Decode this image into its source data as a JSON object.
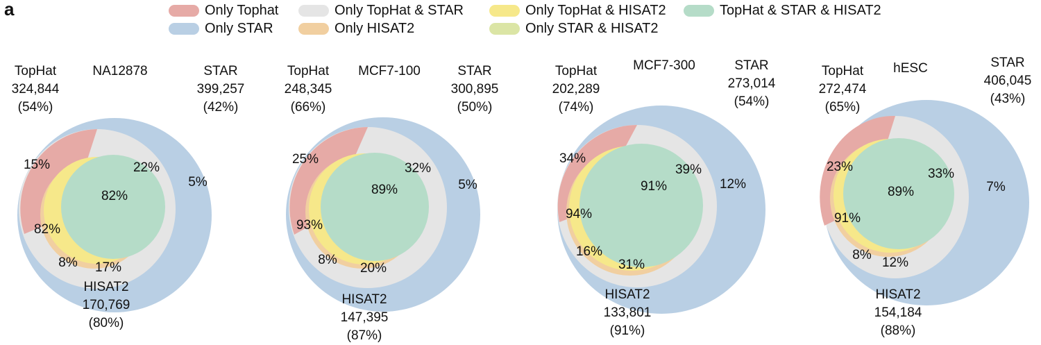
{
  "panel_letter": "a",
  "legend": [
    {
      "label": "Only Tophat",
      "color": "#e6aaa6"
    },
    {
      "label": "Only STAR",
      "color": "#b9cfe4"
    },
    {
      "label": "Only TopHat & STAR",
      "color": "#e5e5e5"
    },
    {
      "label": "Only HISAT2",
      "color": "#f1cfa0"
    },
    {
      "label": "Only TopHat & HISAT2",
      "color": "#f6e88a"
    },
    {
      "label": "Only STAR & HISAT2",
      "color": "#dbe5a5"
    },
    {
      "label": "TopHat & STAR & HISAT2",
      "color": "#b5dcc8"
    }
  ],
  "venns": [
    {
      "title": "NA12878",
      "tophat": {
        "name": "TopHat",
        "count": "324,844",
        "pct": "(54%)"
      },
      "star": {
        "name": "STAR",
        "count": "399,257",
        "pct": "(42%)"
      },
      "hisat": {
        "name": "HISAT2",
        "count": "170,769",
        "pct": "(80%)"
      },
      "regions": {
        "tophat_only": "15%",
        "tophat_star": "22%",
        "star_only": "5%",
        "all": "82%",
        "tophat_hisat": "82%",
        "hisat_only": "8%",
        "star_hisat": "17%"
      }
    },
    {
      "title": "MCF7-100",
      "tophat": {
        "name": "TopHat",
        "count": "248,345",
        "pct": "(66%)"
      },
      "star": {
        "name": "STAR",
        "count": "300,895",
        "pct": "(50%)"
      },
      "hisat": {
        "name": "HISAT2",
        "count": "147,395",
        "pct": "(87%)"
      },
      "regions": {
        "tophat_only": "25%",
        "tophat_star": "32%",
        "star_only": "5%",
        "all": "89%",
        "tophat_hisat": "93%",
        "hisat_only": "8%",
        "star_hisat": "20%"
      }
    },
    {
      "title": "MCF7-300",
      "tophat": {
        "name": "TopHat",
        "count": "202,289",
        "pct": "(74%)"
      },
      "star": {
        "name": "STAR",
        "count": "273,014",
        "pct": "(54%)"
      },
      "hisat": {
        "name": "HISAT2",
        "count": "133,801",
        "pct": "(91%)"
      },
      "regions": {
        "tophat_only": "34%",
        "tophat_star": "39%",
        "star_only": "12%",
        "all": "91%",
        "tophat_hisat": "94%",
        "hisat_only": "16%",
        "star_hisat": "31%"
      }
    },
    {
      "title": "hESC",
      "tophat": {
        "name": "TopHat",
        "count": "272,474",
        "pct": "(65%)"
      },
      "star": {
        "name": "STAR",
        "count": "406,045",
        "pct": "(43%)"
      },
      "hisat": {
        "name": "HISAT2",
        "count": "154,184",
        "pct": "(88%)"
      },
      "regions": {
        "tophat_only": "23%",
        "tophat_star": "33%",
        "star_only": "7%",
        "all": "89%",
        "tophat_hisat": "91%",
        "hisat_only": "8%",
        "star_hisat": "12%"
      }
    }
  ]
}
